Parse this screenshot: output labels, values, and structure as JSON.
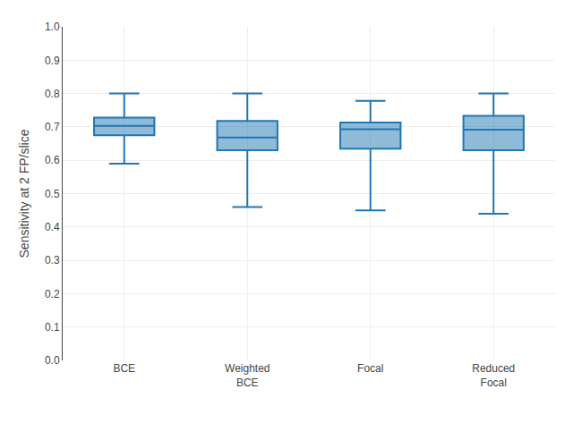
{
  "chart_data": {
    "type": "box",
    "categories": [
      "BCE",
      "Weighted\nBCE",
      "Focal",
      "Reduced\nFocal"
    ],
    "boxes": [
      {
        "whisker_low": 0.59,
        "q1": 0.675,
        "median": 0.703,
        "q3": 0.728,
        "whisker_high": 0.8
      },
      {
        "whisker_low": 0.46,
        "q1": 0.63,
        "median": 0.668,
        "q3": 0.718,
        "whisker_high": 0.8
      },
      {
        "whisker_low": 0.45,
        "q1": 0.635,
        "median": 0.693,
        "q3": 0.713,
        "whisker_high": 0.778
      },
      {
        "whisker_low": 0.44,
        "q1": 0.63,
        "median": 0.692,
        "q3": 0.733,
        "whisker_high": 0.8
      }
    ],
    "ylabel": "Sensitivity at 2 FP/slice",
    "ylim": [
      0.0,
      1.0
    ],
    "yticks": [
      {
        "value": 0.0,
        "label": "0.0"
      },
      0.1,
      0.2,
      0.3,
      0.4,
      0.5,
      0.6,
      0.7,
      0.8,
      0.9,
      {
        "value": 1.0,
        "label": "1.0"
      }
    ],
    "grid": true
  }
}
